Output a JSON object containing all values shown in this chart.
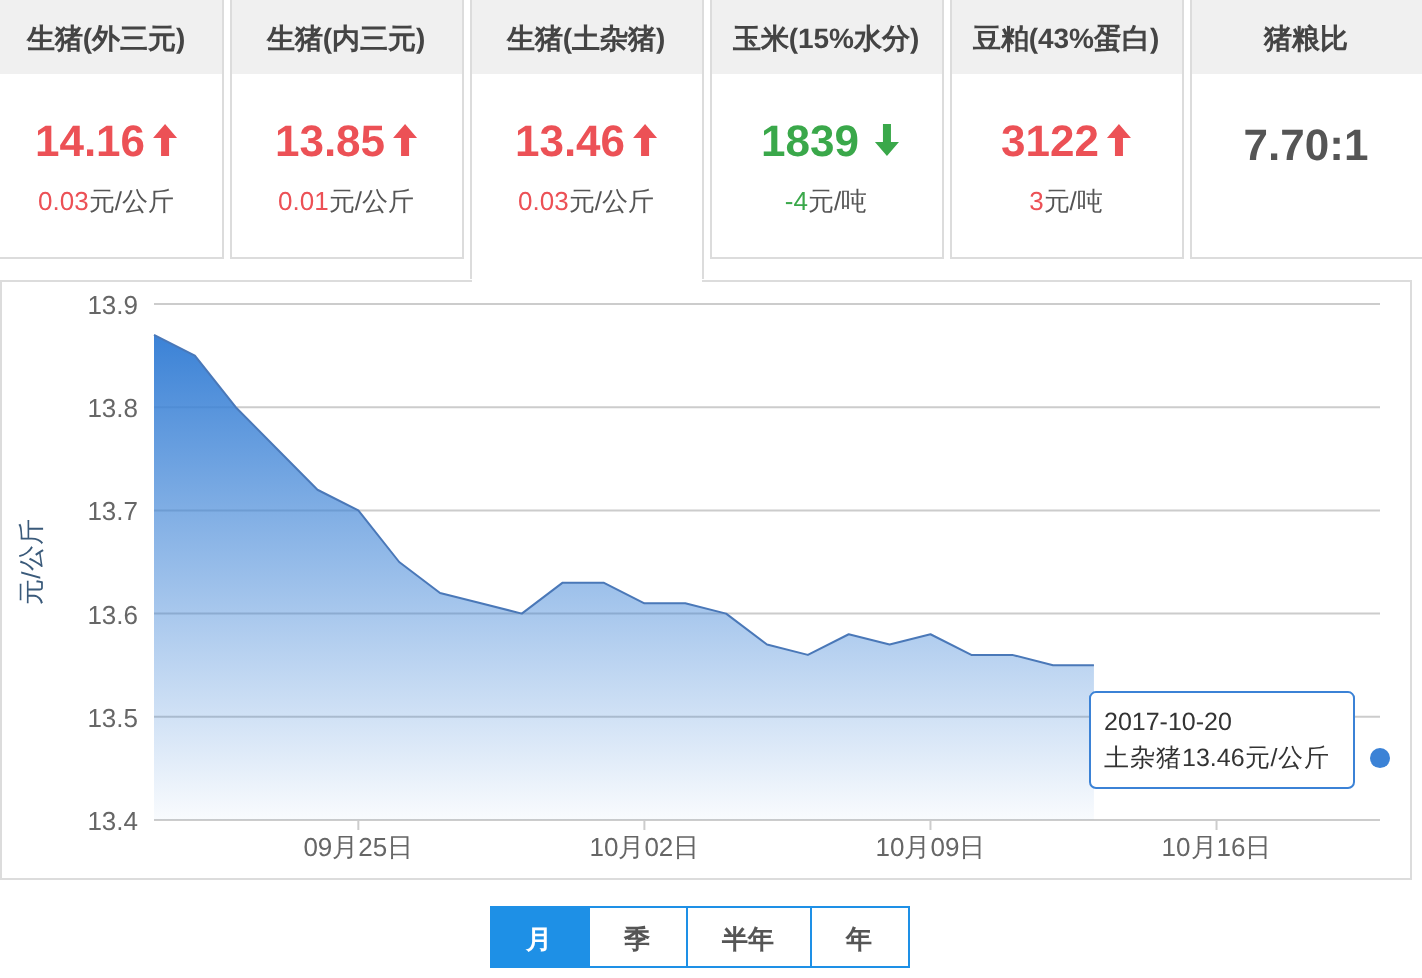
{
  "chart_data": [
    {
      "type": "other",
      "categories": [
        "生猪(外三元)",
        "生猪(内三元)",
        "生猪(土杂猪)",
        "玉米(15%水分)",
        "豆粕(43%蛋白)",
        "猪粮比"
      ],
      "value_labels": [
        "14.16",
        "13.85",
        "13.46",
        "1839",
        "3122",
        "7.70:1"
      ],
      "annotations": [
        "0.03元/公斤",
        "0.01元/公斤",
        "0.03元/公斤",
        "-4元/吨",
        "3元/吨"
      ]
    },
    {
      "type": "area",
      "ylabel": "元/公斤",
      "series": [
        {
          "color": "#3b82d6",
          "x": [
            "2017-09-20",
            "2017-09-21",
            "2017-09-22",
            "2017-09-23",
            "2017-09-24",
            "2017-09-25",
            "2017-09-26",
            "2017-09-27",
            "2017-09-28",
            "2017-09-29",
            "2017-09-30",
            "2017-10-01",
            "2017-10-02",
            "2017-10-03",
            "2017-10-04",
            "2017-10-05",
            "2017-10-06",
            "2017-10-07",
            "2017-10-08",
            "2017-10-09",
            "2017-10-10",
            "2017-10-11",
            "2017-10-12",
            "2017-10-13"
          ],
          "values": [
            13.87,
            13.85,
            13.8,
            13.76,
            13.72,
            13.7,
            13.65,
            13.62,
            13.61,
            13.6,
            13.63,
            13.63,
            13.61,
            13.61,
            13.6,
            13.57,
            13.56,
            13.58,
            13.57,
            13.58,
            13.56,
            13.56,
            13.55,
            13.55
          ]
        },
        {
          "type": "scatter",
          "color": "#3b82d6",
          "x": [
            "2017-10-20"
          ],
          "values": [
            13.46
          ]
        }
      ],
      "xlim": [
        "2017-09-20",
        "2017-10-20"
      ],
      "xticks": [
        {
          "value": "2017-09-25",
          "label": "09月25日"
        },
        {
          "value": "2017-10-02",
          "label": "10月02日"
        },
        {
          "value": "2017-10-09",
          "label": "10月09日"
        },
        {
          "value": "2017-10-16",
          "label": "10月16日"
        }
      ],
      "ylim": [
        13.4,
        13.9
      ],
      "yticks": [
        13.4,
        13.5,
        13.6,
        13.7,
        13.8,
        13.9
      ],
      "grid": "y",
      "annotations": [
        {
          "text": "2017-10-20\n土杂猪13.46元/公斤",
          "x": "2017-10-20",
          "y": 13.46
        },
        "月",
        "季",
        "半年",
        "年"
      ]
    }
  ]
}
